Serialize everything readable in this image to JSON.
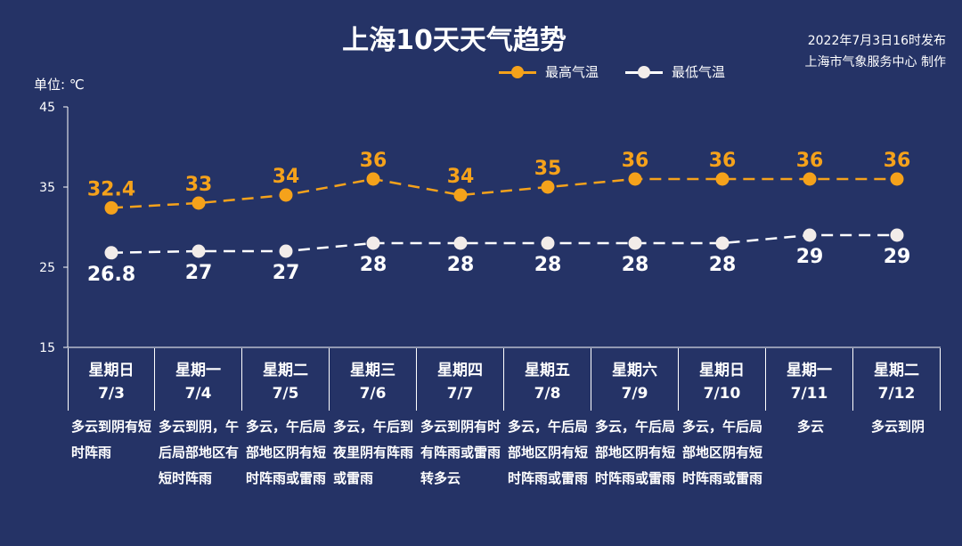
{
  "title": "上海10天天气趋势",
  "issuer": {
    "time": "2022年7月3日16时发布",
    "agency": "上海市气象服务中心 制作"
  },
  "unit_label": "单位: ℃",
  "colors": {
    "background": "#253366",
    "high": "#f5a21b",
    "low": "#ffffff",
    "low_dot": "#f2ece9"
  },
  "chart_data": {
    "type": "line",
    "ylim": [
      15,
      45
    ],
    "yticks": [
      15,
      25,
      35,
      45
    ],
    "grid": false,
    "legend_placement": "top-center",
    "categories": [
      "7/3",
      "7/4",
      "7/5",
      "7/6",
      "7/7",
      "7/8",
      "7/9",
      "7/10",
      "7/11",
      "7/12"
    ],
    "series": [
      {
        "name": "最高气温",
        "values": [
          32.4,
          33,
          34,
          36,
          34,
          35,
          36,
          36,
          36,
          36
        ],
        "labels": [
          "32.4",
          "33",
          "34",
          "36",
          "34",
          "35",
          "36",
          "36",
          "36",
          "36"
        ],
        "color": "#f5a21b"
      },
      {
        "name": "最低气温",
        "values": [
          26.8,
          27,
          27,
          28,
          28,
          28,
          28,
          28,
          29,
          29
        ],
        "labels": [
          "26.8",
          "27",
          "27",
          "28",
          "28",
          "28",
          "28",
          "28",
          "29",
          "29"
        ],
        "color": "#ffffff"
      }
    ]
  },
  "days": [
    {
      "weekday": "星期日",
      "date": "7/3",
      "weather": "多云到阴有短时阵雨"
    },
    {
      "weekday": "星期一",
      "date": "7/4",
      "weather": "多云到阴，午后局部地区有短时阵雨"
    },
    {
      "weekday": "星期二",
      "date": "7/5",
      "weather": "多云，午后局部地区阴有短时阵雨或雷雨"
    },
    {
      "weekday": "星期三",
      "date": "7/6",
      "weather": "多云，午后到夜里阴有阵雨或雷雨"
    },
    {
      "weekday": "星期四",
      "date": "7/7",
      "weather": "多云到阴有时有阵雨或雷雨转多云"
    },
    {
      "weekday": "星期五",
      "date": "7/8",
      "weather": "多云，午后局部地区阴有短时阵雨或雷雨"
    },
    {
      "weekday": "星期六",
      "date": "7/9",
      "weather": "多云，午后局部地区阴有短时阵雨或雷雨"
    },
    {
      "weekday": "星期日",
      "date": "7/10",
      "weather": "多云，午后局部地区阴有短时阵雨或雷雨"
    },
    {
      "weekday": "星期一",
      "date": "7/11",
      "weather": "多云"
    },
    {
      "weekday": "星期二",
      "date": "7/12",
      "weather": "多云到阴"
    }
  ]
}
